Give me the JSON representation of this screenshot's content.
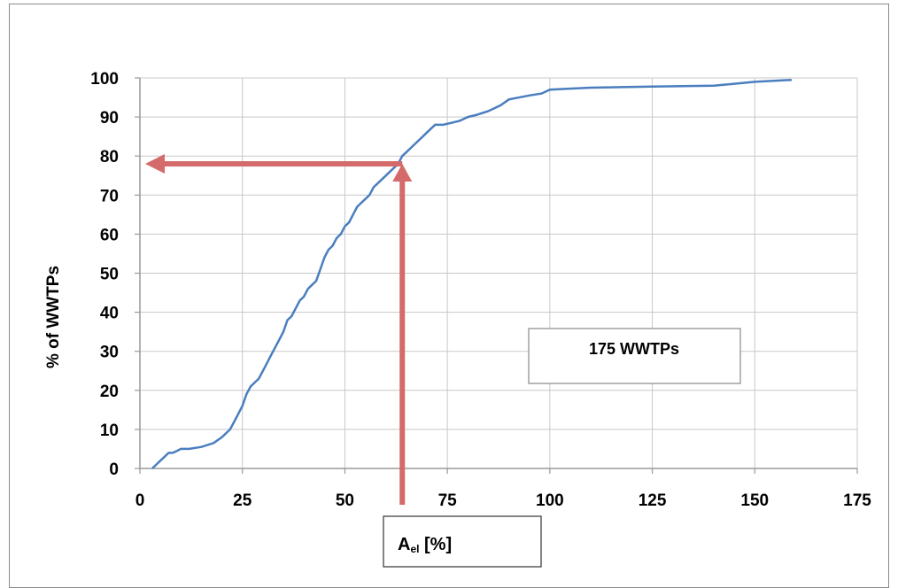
{
  "chart_data": {
    "type": "line",
    "title": "",
    "ylabel": "% of WWTPs",
    "xlabel_main": "A",
    "xlabel_sub": "el",
    "xlabel_unit": " [%]",
    "xlim": [
      0,
      175
    ],
    "ylim": [
      0,
      100
    ],
    "x_ticks": [
      0,
      25,
      50,
      75,
      100,
      125,
      150,
      175
    ],
    "y_ticks": [
      0,
      10,
      20,
      30,
      40,
      50,
      60,
      70,
      80,
      90,
      100
    ],
    "grid": true,
    "annotation": "175 WWTPs",
    "line_color": "#4a7ebf",
    "arrow_color": "#d46a6a",
    "marker_x": 64,
    "marker_y": 78,
    "series": [
      {
        "x": [
          3,
          4,
          5,
          6,
          7,
          8,
          9,
          10,
          12,
          15,
          18,
          20,
          22,
          23,
          24,
          25,
          26,
          27,
          28,
          29,
          30,
          31,
          32,
          33,
          34,
          35,
          36,
          37,
          38,
          39,
          40,
          41,
          42,
          43,
          44,
          45,
          46,
          47,
          48,
          49,
          50,
          51,
          52,
          53,
          54,
          55,
          56,
          57,
          58,
          59,
          60,
          61,
          62,
          63,
          64,
          65,
          66,
          67,
          68,
          69,
          70,
          71,
          72,
          74,
          76,
          78,
          80,
          82,
          85,
          88,
          90,
          95,
          98,
          100,
          110,
          125,
          140,
          145,
          150,
          159
        ],
        "y": [
          0,
          1,
          2,
          3,
          4,
          4,
          4.5,
          5,
          5,
          5.5,
          6.5,
          8,
          10,
          12,
          14,
          16,
          19,
          21,
          22,
          23,
          25,
          27,
          29,
          31,
          33,
          35,
          38,
          39,
          41,
          43,
          44,
          46,
          47,
          48,
          51,
          54,
          56,
          57,
          59,
          60,
          62,
          63,
          65,
          67,
          68,
          69,
          70,
          72,
          73,
          74,
          75,
          76,
          77,
          78,
          80,
          81,
          82,
          83,
          84,
          85,
          86,
          87,
          88,
          88,
          88.5,
          89,
          90,
          90.5,
          91.5,
          93,
          94.5,
          95.5,
          96,
          97,
          97.5,
          97.8,
          98,
          98.5,
          99,
          99.5
        ]
      }
    ]
  }
}
